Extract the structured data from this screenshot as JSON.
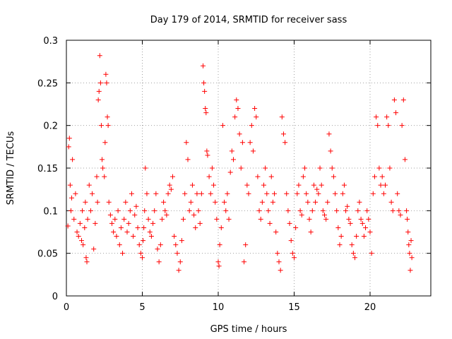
{
  "chart_data": {
    "type": "scatter",
    "title": "Day 179 of 2014, SRMTID for receiver sass",
    "xlabel": "GPS time / hours",
    "ylabel": "SRMTID / TECUs",
    "xlim": [
      0,
      24
    ],
    "ylim": [
      0,
      0.3
    ],
    "xticks": [
      0,
      5,
      10,
      15,
      20
    ],
    "xtick_labels": [
      "0",
      "5",
      "10",
      "15",
      "20"
    ],
    "yticks": [
      0,
      0.05,
      0.1,
      0.15,
      0.2,
      0.25,
      0.3
    ],
    "ytick_labels": [
      "0",
      "0.05",
      "0.1",
      "0.15",
      "0.2",
      "0.25",
      "0.3"
    ],
    "grid": true,
    "marker": "plus",
    "color": "#ff0000",
    "series": [
      {
        "name": "SRMTID",
        "points": [
          [
            0.1,
            0.082
          ],
          [
            0.15,
            0.175
          ],
          [
            0.2,
            0.185
          ],
          [
            0.25,
            0.13
          ],
          [
            0.3,
            0.1
          ],
          [
            0.35,
            0.115
          ],
          [
            0.4,
            0.16
          ],
          [
            0.5,
            0.09
          ],
          [
            0.6,
            0.12
          ],
          [
            0.7,
            0.075
          ],
          [
            0.8,
            0.07
          ],
          [
            0.9,
            0.085
          ],
          [
            1.0,
            0.065
          ],
          [
            1.05,
            0.1
          ],
          [
            1.1,
            0.06
          ],
          [
            1.2,
            0.08
          ],
          [
            1.25,
            0.11
          ],
          [
            1.3,
            0.045
          ],
          [
            1.35,
            0.04
          ],
          [
            1.4,
            0.09
          ],
          [
            1.5,
            0.13
          ],
          [
            1.6,
            0.1
          ],
          [
            1.7,
            0.12
          ],
          [
            1.8,
            0.055
          ],
          [
            1.9,
            0.085
          ],
          [
            2.0,
            0.14
          ],
          [
            2.05,
            0.11
          ],
          [
            2.1,
            0.23
          ],
          [
            2.15,
            0.24
          ],
          [
            2.2,
            0.282
          ],
          [
            2.25,
            0.25
          ],
          [
            2.3,
            0.2
          ],
          [
            2.35,
            0.16
          ],
          [
            2.4,
            0.15
          ],
          [
            2.5,
            0.14
          ],
          [
            2.55,
            0.18
          ],
          [
            2.6,
            0.26
          ],
          [
            2.65,
            0.25
          ],
          [
            2.7,
            0.21
          ],
          [
            2.75,
            0.2
          ],
          [
            2.8,
            0.11
          ],
          [
            2.9,
            0.095
          ],
          [
            3.0,
            0.085
          ],
          [
            3.1,
            0.075
          ],
          [
            3.2,
            0.09
          ],
          [
            3.3,
            0.07
          ],
          [
            3.4,
            0.1
          ],
          [
            3.5,
            0.06
          ],
          [
            3.6,
            0.08
          ],
          [
            3.7,
            0.05
          ],
          [
            3.8,
            0.09
          ],
          [
            3.9,
            0.11
          ],
          [
            4.0,
            0.075
          ],
          [
            4.1,
            0.085
          ],
          [
            4.2,
            0.1
          ],
          [
            4.3,
            0.12
          ],
          [
            4.4,
            0.07
          ],
          [
            4.5,
            0.095
          ],
          [
            4.6,
            0.105
          ],
          [
            4.7,
            0.08
          ],
          [
            4.8,
            0.06
          ],
          [
            4.9,
            0.05
          ],
          [
            5.0,
            0.045
          ],
          [
            5.05,
            0.065
          ],
          [
            5.1,
            0.08
          ],
          [
            5.15,
            0.1
          ],
          [
            5.2,
            0.15
          ],
          [
            5.3,
            0.12
          ],
          [
            5.4,
            0.09
          ],
          [
            5.5,
            0.075
          ],
          [
            5.6,
            0.07
          ],
          [
            5.7,
            0.085
          ],
          [
            5.8,
            0.1
          ],
          [
            5.9,
            0.12
          ],
          [
            6.0,
            0.055
          ],
          [
            6.1,
            0.04
          ],
          [
            6.2,
            0.06
          ],
          [
            6.3,
            0.09
          ],
          [
            6.4,
            0.11
          ],
          [
            6.5,
            0.1
          ],
          [
            6.6,
            0.095
          ],
          [
            6.7,
            0.12
          ],
          [
            6.8,
            0.13
          ],
          [
            6.9,
            0.125
          ],
          [
            7.0,
            0.14
          ],
          [
            7.1,
            0.07
          ],
          [
            7.2,
            0.06
          ],
          [
            7.3,
            0.05
          ],
          [
            7.4,
            0.03
          ],
          [
            7.5,
            0.04
          ],
          [
            7.6,
            0.065
          ],
          [
            7.7,
            0.09
          ],
          [
            7.8,
            0.12
          ],
          [
            7.9,
            0.18
          ],
          [
            8.0,
            0.16
          ],
          [
            8.1,
            0.1
          ],
          [
            8.2,
            0.11
          ],
          [
            8.3,
            0.13
          ],
          [
            8.4,
            0.095
          ],
          [
            8.5,
            0.08
          ],
          [
            8.6,
            0.12
          ],
          [
            8.7,
            0.1
          ],
          [
            8.8,
            0.085
          ],
          [
            8.9,
            0.12
          ],
          [
            9.0,
            0.27
          ],
          [
            9.05,
            0.25
          ],
          [
            9.1,
            0.24
          ],
          [
            9.15,
            0.22
          ],
          [
            9.2,
            0.215
          ],
          [
            9.25,
            0.17
          ],
          [
            9.3,
            0.165
          ],
          [
            9.4,
            0.14
          ],
          [
            9.5,
            0.12
          ],
          [
            9.6,
            0.15
          ],
          [
            9.7,
            0.13
          ],
          [
            9.8,
            0.11
          ],
          [
            9.9,
            0.09
          ],
          [
            10.0,
            0.04
          ],
          [
            10.05,
            0.035
          ],
          [
            10.1,
            0.06
          ],
          [
            10.2,
            0.08
          ],
          [
            10.3,
            0.2
          ],
          [
            10.4,
            0.11
          ],
          [
            10.5,
            0.1
          ],
          [
            10.6,
            0.12
          ],
          [
            10.7,
            0.09
          ],
          [
            10.8,
            0.145
          ],
          [
            10.9,
            0.17
          ],
          [
            11.0,
            0.16
          ],
          [
            11.1,
            0.21
          ],
          [
            11.2,
            0.23
          ],
          [
            11.3,
            0.22
          ],
          [
            11.4,
            0.19
          ],
          [
            11.5,
            0.15
          ],
          [
            11.6,
            0.18
          ],
          [
            11.7,
            0.04
          ],
          [
            11.8,
            0.06
          ],
          [
            11.9,
            0.13
          ],
          [
            12.0,
            0.12
          ],
          [
            12.1,
            0.18
          ],
          [
            12.2,
            0.2
          ],
          [
            12.3,
            0.17
          ],
          [
            12.4,
            0.22
          ],
          [
            12.5,
            0.21
          ],
          [
            12.6,
            0.14
          ],
          [
            12.7,
            0.1
          ],
          [
            12.8,
            0.09
          ],
          [
            12.9,
            0.11
          ],
          [
            13.0,
            0.13
          ],
          [
            13.1,
            0.15
          ],
          [
            13.2,
            0.12
          ],
          [
            13.3,
            0.1
          ],
          [
            13.4,
            0.085
          ],
          [
            13.5,
            0.14
          ],
          [
            13.6,
            0.11
          ],
          [
            13.7,
            0.12
          ],
          [
            13.8,
            0.075
          ],
          [
            13.9,
            0.05
          ],
          [
            14.0,
            0.04
          ],
          [
            14.1,
            0.03
          ],
          [
            14.2,
            0.21
          ],
          [
            14.3,
            0.19
          ],
          [
            14.4,
            0.18
          ],
          [
            14.5,
            0.12
          ],
          [
            14.6,
            0.1
          ],
          [
            14.7,
            0.085
          ],
          [
            14.8,
            0.065
          ],
          [
            14.9,
            0.05
          ],
          [
            15.0,
            0.045
          ],
          [
            15.1,
            0.08
          ],
          [
            15.2,
            0.12
          ],
          [
            15.3,
            0.13
          ],
          [
            15.4,
            0.1
          ],
          [
            15.5,
            0.095
          ],
          [
            15.6,
            0.14
          ],
          [
            15.7,
            0.15
          ],
          [
            15.8,
            0.12
          ],
          [
            15.9,
            0.11
          ],
          [
            16.0,
            0.09
          ],
          [
            16.1,
            0.075
          ],
          [
            16.2,
            0.1
          ],
          [
            16.3,
            0.13
          ],
          [
            16.4,
            0.11
          ],
          [
            16.5,
            0.125
          ],
          [
            16.6,
            0.12
          ],
          [
            16.7,
            0.15
          ],
          [
            16.8,
            0.13
          ],
          [
            16.9,
            0.1
          ],
          [
            17.0,
            0.095
          ],
          [
            17.1,
            0.09
          ],
          [
            17.2,
            0.11
          ],
          [
            17.3,
            0.19
          ],
          [
            17.4,
            0.17
          ],
          [
            17.5,
            0.15
          ],
          [
            17.6,
            0.14
          ],
          [
            17.7,
            0.12
          ],
          [
            17.8,
            0.1
          ],
          [
            17.9,
            0.08
          ],
          [
            18.0,
            0.06
          ],
          [
            18.1,
            0.07
          ],
          [
            18.2,
            0.12
          ],
          [
            18.3,
            0.13
          ],
          [
            18.4,
            0.1
          ],
          [
            18.5,
            0.105
          ],
          [
            18.6,
            0.09
          ],
          [
            18.7,
            0.085
          ],
          [
            18.8,
            0.06
          ],
          [
            18.9,
            0.05
          ],
          [
            19.0,
            0.045
          ],
          [
            19.1,
            0.07
          ],
          [
            19.2,
            0.1
          ],
          [
            19.3,
            0.11
          ],
          [
            19.4,
            0.09
          ],
          [
            19.5,
            0.085
          ],
          [
            19.6,
            0.07
          ],
          [
            19.7,
            0.08
          ],
          [
            19.8,
            0.1
          ],
          [
            19.9,
            0.09
          ],
          [
            20.0,
            0.075
          ],
          [
            20.1,
            0.05
          ],
          [
            20.2,
            0.12
          ],
          [
            20.3,
            0.14
          ],
          [
            20.4,
            0.21
          ],
          [
            20.5,
            0.2
          ],
          [
            20.6,
            0.15
          ],
          [
            20.7,
            0.13
          ],
          [
            20.8,
            0.14
          ],
          [
            20.9,
            0.12
          ],
          [
            21.0,
            0.13
          ],
          [
            21.1,
            0.21
          ],
          [
            21.2,
            0.2
          ],
          [
            21.3,
            0.15
          ],
          [
            21.4,
            0.11
          ],
          [
            21.5,
            0.1
          ],
          [
            21.6,
            0.23
          ],
          [
            21.7,
            0.215
          ],
          [
            21.8,
            0.12
          ],
          [
            21.9,
            0.1
          ],
          [
            22.0,
            0.095
          ],
          [
            22.1,
            0.2
          ],
          [
            22.2,
            0.23
          ],
          [
            22.3,
            0.16
          ],
          [
            22.4,
            0.1
          ],
          [
            22.45,
            0.09
          ],
          [
            22.5,
            0.075
          ],
          [
            22.55,
            0.06
          ],
          [
            22.6,
            0.05
          ],
          [
            22.65,
            0.03
          ],
          [
            22.7,
            0.065
          ],
          [
            22.75,
            0.045
          ]
        ]
      }
    ]
  }
}
